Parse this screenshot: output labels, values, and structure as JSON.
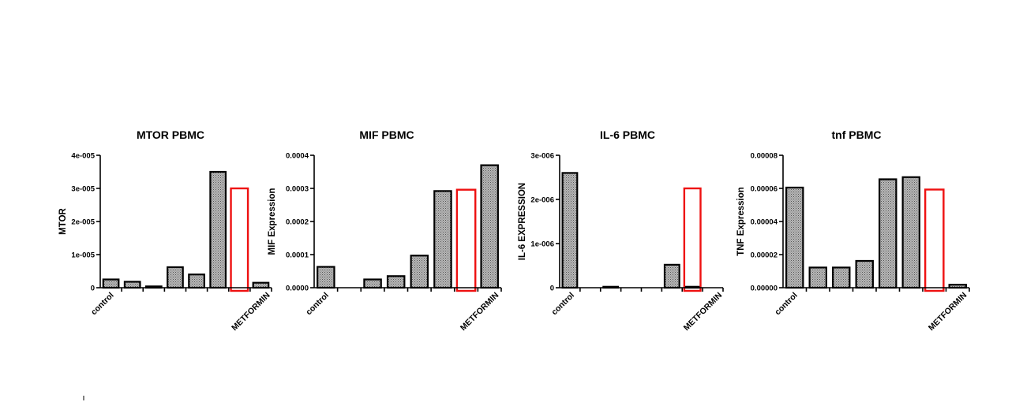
{
  "chart_data": [
    {
      "type": "bar",
      "title": "MTOR PBMC",
      "ylabel": "MTOR",
      "ylim": [
        0,
        4e-05
      ],
      "yticks": [
        0,
        1e-05,
        2e-05,
        3e-05,
        4e-05
      ],
      "ytick_labels": [
        "0",
        "1e-005",
        "2e-005",
        "3e-005",
        "4e-005"
      ],
      "categories": [
        "control",
        "",
        "",
        "",
        "",
        "",
        "",
        "METFORMIN"
      ],
      "values": [
        2.5e-06,
        1.8e-06,
        4e-07,
        6.2e-06,
        4e-06,
        3.5e-05,
        0,
        1.5e-06
      ],
      "highlight_index": 6,
      "highlight_value": 3e-05
    },
    {
      "type": "bar",
      "title": "MIF  PBMC",
      "ylabel": "MIF Expression",
      "ylim": [
        0,
        0.0004
      ],
      "yticks": [
        0,
        0.0001,
        0.0002,
        0.0003,
        0.0004
      ],
      "ytick_labels": [
        "0.0000",
        "0.0001",
        "0.0002",
        "0.0003",
        "0.0004"
      ],
      "categories": [
        "control",
        "",
        "",
        "",
        "",
        "",
        "",
        "METFORMIN"
      ],
      "values": [
        6.3e-05,
        0,
        2.5e-05,
        3.5e-05,
        9.7e-05,
        0.000292,
        0,
        0.00037
      ],
      "highlight_index": 6,
      "highlight_value": 0.000296
    },
    {
      "type": "bar",
      "title": "IL-6 PBMC",
      "ylabel": "IL-6 EXPRESSION",
      "ylim": [
        0,
        3e-06
      ],
      "yticks": [
        0,
        1e-06,
        2e-06,
        3e-06
      ],
      "ytick_labels": [
        "0",
        "1e-006",
        "2e-006",
        "3e-006"
      ],
      "categories": [
        "control",
        "",
        "",
        "",
        "",
        "",
        "",
        "METFORMIN"
      ],
      "values": [
        2.6e-06,
        0,
        2e-08,
        0,
        0,
        5.2e-07,
        2e-08,
        0
      ],
      "highlight_index": 6,
      "highlight_value": 2.25e-06
    },
    {
      "type": "bar",
      "title": "tnf  PBMC",
      "ylabel": "TNF Expression",
      "ylim": [
        0,
        8e-05
      ],
      "yticks": [
        0,
        2e-05,
        4e-05,
        6e-05,
        8e-05
      ],
      "ytick_labels": [
        "0.00000",
        "0.00002",
        "0.00004",
        "0.00006",
        "0.00008"
      ],
      "categories": [
        "control",
        "",
        "",
        "",
        "",
        "",
        "",
        "METFORMIN"
      ],
      "values": [
        6.05e-05,
        1.22e-05,
        1.22e-05,
        1.62e-05,
        6.55e-05,
        6.68e-05,
        0,
        1.8e-06
      ],
      "highlight_index": 6,
      "highlight_value": 5.93e-05
    }
  ],
  "colors": {
    "bar_fill": "#a9a9a9",
    "highlight": "#ee1111",
    "axis": "#000000"
  }
}
